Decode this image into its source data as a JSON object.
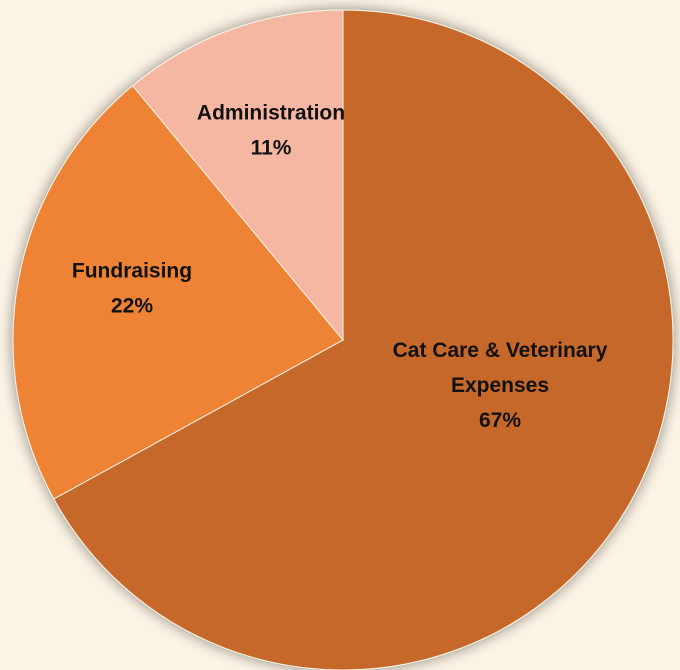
{
  "chart_data": {
    "type": "pie",
    "title": "",
    "legend": "none",
    "start_angle_deg": 0,
    "direction": "clockwise",
    "slices": [
      {
        "name": "Cat Care & Veterinary Expenses",
        "label_lines": [
          "Cat Care & Veterinary",
          "Expenses",
          "67%"
        ],
        "value": 67,
        "percent_label": "67%",
        "color": "#c5672a"
      },
      {
        "name": "Fundraising",
        "label_lines": [
          "Fundraising",
          "22%"
        ],
        "value": 22,
        "percent_label": "22%",
        "color": "#ee8234"
      },
      {
        "name": "Administration",
        "label_lines": [
          "Administration",
          "11%"
        ],
        "value": 11,
        "percent_label": "11%",
        "color": "#f5b7a2"
      }
    ]
  },
  "colors": {
    "background": "#fbf3e4",
    "label_text": "#111111",
    "slice_edge": "#fbf3e4"
  }
}
